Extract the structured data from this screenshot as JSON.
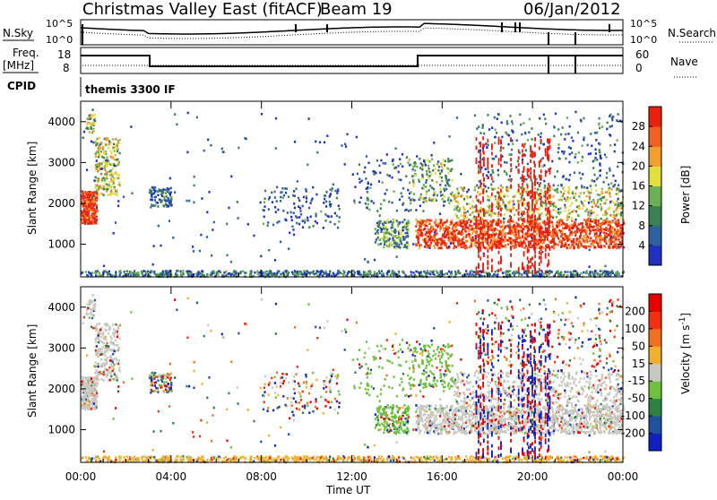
{
  "header": {
    "station": "Christmas Valley East (fitACF)",
    "beam": "Beam 19",
    "date": "06/Jan/2012"
  },
  "top_panels": {
    "nsky_label": "N.Sky",
    "nsearch_label": "N.Search",
    "nsky_ticks": [
      "10^5",
      "10^0"
    ],
    "nsearch_ticks": [
      "10^5",
      "10^0"
    ],
    "freq_label_1": "Freq.",
    "freq_label_2": "[MHz]",
    "freq_ticks": [
      "18",
      "8"
    ],
    "nave_label": "Nave",
    "nave_ticks": [
      "60",
      "0"
    ],
    "cpid_label": "CPID",
    "cpid_value": "themis 3300 IF"
  },
  "chart_data": [
    {
      "type": "heatmap",
      "name": "Power",
      "ylabel": "Slant Range [km]",
      "xlabel": "",
      "ylim": [
        200,
        4500
      ],
      "yticks": [
        "1000",
        "2000",
        "3000",
        "4000"
      ],
      "colorbar_label": "Power [dB]",
      "colorbar_ticks": [
        "28",
        "24",
        "20",
        "16",
        "12",
        "8",
        "4"
      ],
      "colorscale": [
        "#2030c0",
        "#3060a0",
        "#3a8050",
        "#68b050",
        "#e0e040",
        "#f0a030",
        "#f06020",
        "#e82010"
      ]
    },
    {
      "type": "heatmap",
      "name": "Velocity",
      "ylabel": "Slant Range [km]",
      "xlabel": "Time UT",
      "ylim": [
        200,
        4500
      ],
      "yticks": [
        "1000",
        "2000",
        "3000",
        "4000"
      ],
      "xticks": [
        "00:00",
        "04:00",
        "08:00",
        "12:00",
        "16:00",
        "20:00",
        "00:00"
      ],
      "colorbar_label": "Velocity [m s^-1]",
      "colorbar_ticks": [
        "200",
        "100",
        "50",
        "15",
        "-15",
        "-50",
        "-100",
        "-200"
      ],
      "colorscale": [
        "#1020c0",
        "#2050a0",
        "#2e8040",
        "#70c040",
        "#c8c8c0",
        "#f0b030",
        "#f07020",
        "#f03010",
        "#e80000"
      ]
    }
  ]
}
